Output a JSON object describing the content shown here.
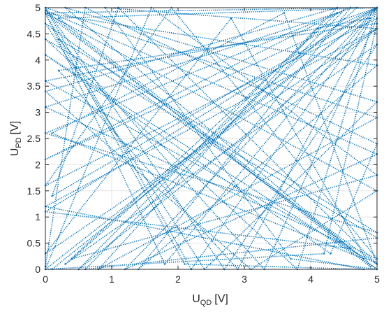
{
  "chart_data": {
    "type": "scatter",
    "title": "",
    "xlabel": {
      "main": "U",
      "sub": "QD",
      "unit": "[V]"
    },
    "ylabel": {
      "main": "U",
      "sub": "PD",
      "unit": "[V]"
    },
    "xlim": [
      0,
      5
    ],
    "ylim": [
      0,
      5
    ],
    "x_ticks": [
      "0",
      "1",
      "2",
      "3",
      "4",
      "5"
    ],
    "y_ticks": [
      "0",
      "0.5",
      "1",
      "1.5",
      "2",
      "2.5",
      "3",
      "3.5",
      "4",
      "4.5",
      "5"
    ],
    "grid": true,
    "color": "#0072BD",
    "series": [
      {
        "style": "dotted-trajectory",
        "x": [
          0,
          5,
          0.2,
          4.8,
          0.1,
          3.6,
          5,
          0,
          2.4,
          5,
          0.3,
          4.6,
          0,
          5,
          1.2,
          5,
          0,
          4.9,
          2.8,
          0,
          5,
          0.5,
          4.4,
          0,
          3.1,
          5,
          0,
          1.8,
          5,
          0.1
        ],
        "y": [
          0,
          5,
          4.8,
          0.2,
          2.6,
          4.9,
          0.1,
          4.7,
          0,
          3.2,
          5,
          0.4,
          1.1,
          5,
          0,
          2.2,
          4.95,
          0.05,
          4.8,
          0.3,
          4.6,
          0,
          5,
          3.4,
          0,
          1.5,
          4.9,
          0.1,
          5,
          0
        ]
      },
      {
        "style": "dotted-trajectory",
        "x": [
          5,
          0,
          4.7,
          0.4,
          5,
          1.6,
          0,
          4.2,
          5,
          0.2,
          2.9,
          5,
          0,
          4.5,
          0.6,
          5,
          0,
          3.8,
          5,
          0.1,
          1.1,
          5,
          0,
          4.9,
          2.2,
          0,
          5,
          0.8,
          4.1,
          5
        ],
        "y": [
          0,
          4.9,
          5,
          0.2,
          1.8,
          5,
          0,
          0.3,
          4.7,
          3.8,
          0,
          5,
          2.1,
          4.95,
          0,
          0.6,
          4.4,
          0,
          5,
          1.4,
          5,
          0.1,
          3.6,
          4.8,
          0,
          5,
          2.9,
          0,
          4.6,
          5
        ]
      },
      {
        "style": "dotted-trajectory",
        "x": [
          0,
          2.7,
          5,
          0.3,
          4.4,
          0,
          5,
          1.9,
          0,
          5,
          3.3,
          0.2,
          5,
          0,
          4.6,
          1.4,
          5,
          0,
          2.1,
          4.8,
          0,
          5,
          0.9,
          3.7,
          5,
          0,
          4.3,
          5,
          0.6,
          0
        ],
        "y": [
          5,
          0,
          4.3,
          0.1,
          4.9,
          3.1,
          0.2,
          5,
          1.6,
          4.8,
          0,
          4.4,
          0.7,
          2.6,
          5,
          0,
          3.9,
          4.9,
          0.1,
          0,
          1.2,
          4.6,
          5,
          0.2,
          0,
          4.1,
          0.3,
          2.4,
          5,
          0.05
        ]
      }
    ]
  }
}
